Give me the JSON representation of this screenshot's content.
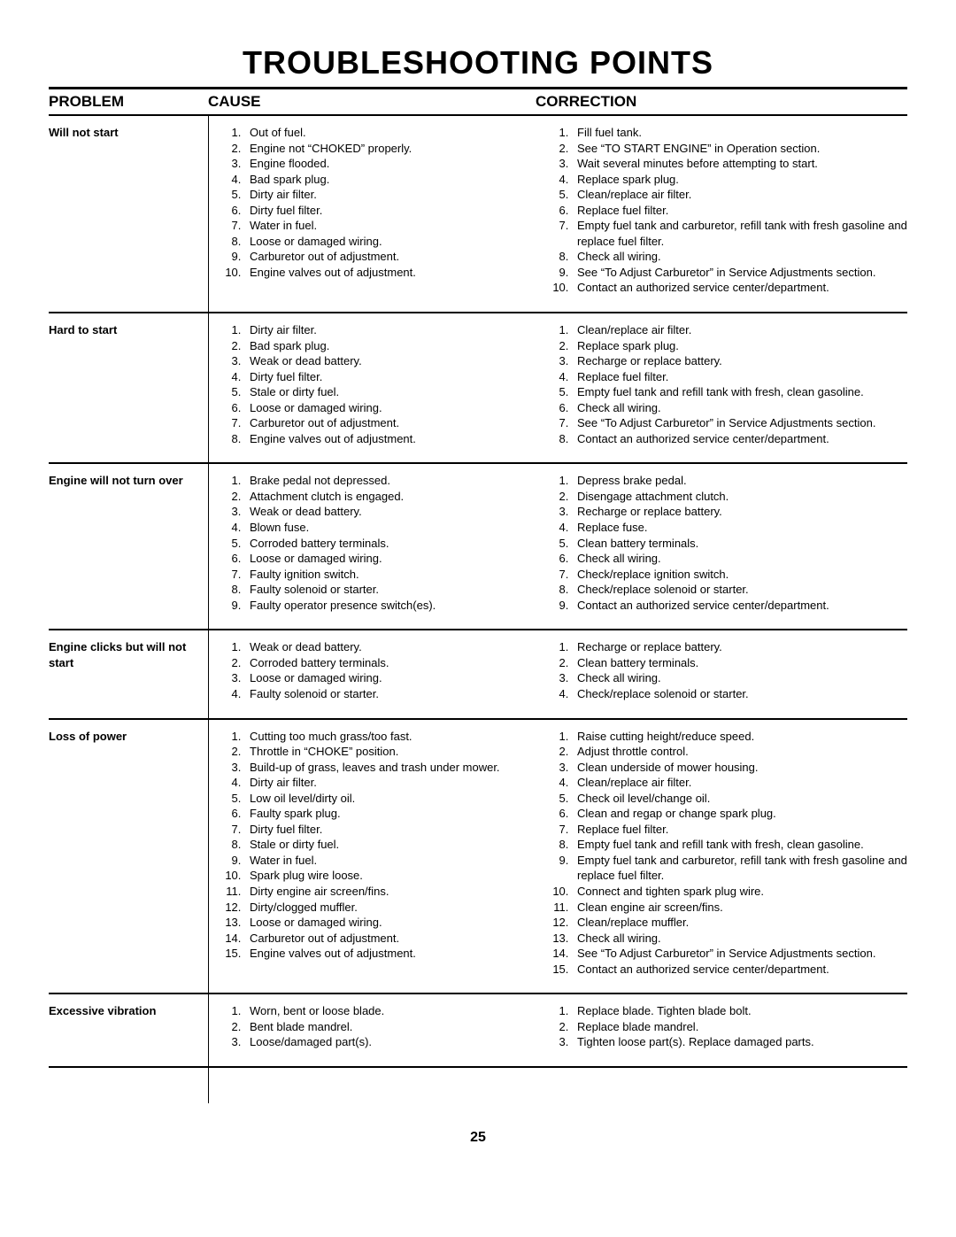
{
  "title": "TROUBLESHOOTING POINTS",
  "headers": {
    "problem": "PROBLEM",
    "cause": "CAUSE",
    "correction": "CORRECTION"
  },
  "page_number": "25",
  "sections": [
    {
      "problem": "Will not start",
      "causes": [
        "Out of fuel.",
        "Engine not “CHOKED” properly.",
        "Engine flooded.",
        "Bad spark plug.",
        "Dirty air filter.",
        "Dirty fuel filter.",
        "Water in fuel.",
        "Loose or damaged wiring.",
        "Carburetor out of adjustment.",
        "Engine valves out of adjustment."
      ],
      "corrections": [
        "Fill fuel tank.",
        "See “TO START ENGINE” in Operation section.",
        "Wait several minutes before attempting to start.",
        "Replace spark plug.",
        "Clean/replace air filter.",
        "Replace fuel filter.",
        "Empty fuel tank and carburetor, refill tank with fresh gasoline and replace fuel filter.",
        "Check all wiring.",
        "See “To Adjust Carburetor” in Service Adjustments section.",
        "Contact an authorized service center/department."
      ]
    },
    {
      "problem": "Hard to start",
      "causes": [
        "Dirty air filter.",
        "Bad spark plug.",
        "Weak or dead battery.",
        "Dirty fuel filter.",
        "Stale or dirty fuel.",
        "Loose or damaged wiring.",
        "Carburetor out of adjustment.",
        "Engine valves out of adjustment."
      ],
      "corrections": [
        "Clean/replace air filter.",
        "Replace spark plug.",
        "Recharge or replace battery.",
        "Replace fuel filter.",
        "Empty fuel tank and refill tank with fresh, clean gasoline.",
        "Check all wiring.",
        "See “To Adjust Carburetor” in Service Adjustments section.",
        "Contact an authorized service center/department."
      ]
    },
    {
      "problem": "Engine will not turn over",
      "causes": [
        "Brake pedal not depressed.",
        "Attachment clutch is engaged.",
        "Weak or dead battery.",
        "Blown fuse.",
        "Corroded battery terminals.",
        "Loose or damaged wiring.",
        "Faulty ignition switch.",
        "Faulty solenoid or starter.",
        "Faulty operator presence switch(es)."
      ],
      "corrections": [
        "Depress brake pedal.",
        "Disengage attachment clutch.",
        "Recharge or replace battery.",
        "Replace fuse.",
        "Clean battery terminals.",
        "Check all wiring.",
        "Check/replace ignition switch.",
        "Check/replace solenoid or starter.",
        "Contact an authorized service center/department."
      ]
    },
    {
      "problem": "Engine clicks but will not start",
      "causes": [
        "Weak or dead battery.",
        "Corroded battery terminals.",
        "Loose or damaged wiring.",
        "Faulty solenoid or starter."
      ],
      "corrections": [
        "Recharge or replace battery.",
        "Clean battery terminals.",
        "Check all wiring.",
        "Check/replace solenoid or starter."
      ]
    },
    {
      "problem": "Loss of power",
      "causes": [
        "Cutting too much grass/too fast.",
        "Throttle in “CHOKE” position.",
        "Build-up of grass, leaves and trash under mower.",
        "Dirty air filter.",
        "Low oil level/dirty oil.",
        "Faulty spark plug.",
        "Dirty fuel filter.",
        "Stale or dirty fuel.",
        "Water in fuel.",
        "Spark plug wire loose.",
        "Dirty engine air screen/fins.",
        "Dirty/clogged muffler.",
        "Loose or damaged wiring.",
        "Carburetor out of adjustment.",
        "Engine valves out of adjustment."
      ],
      "corrections": [
        "Raise cutting height/reduce speed.",
        "Adjust throttle control.",
        "Clean underside of mower housing.",
        "Clean/replace air filter.",
        "Check oil level/change oil.",
        "Clean and regap or change spark plug.",
        "Replace fuel filter.",
        "Empty fuel tank and refill tank with fresh, clean gasoline.",
        "Empty fuel tank and carburetor, refill tank with fresh gasoline and replace fuel filter.",
        "Connect and tighten spark plug wire.",
        "Clean engine air screen/fins.",
        "Clean/replace muffler.",
        "Check all wiring.",
        "See “To Adjust Carburetor” in Service Adjustments section.",
        "Contact an authorized service center/department."
      ]
    },
    {
      "problem": "Excessive vibration",
      "causes": [
        "Worn, bent or loose blade.",
        "Bent blade mandrel.",
        "Loose/damaged part(s)."
      ],
      "corrections": [
        "Replace blade.  Tighten blade bolt.",
        "Replace blade mandrel.",
        "Tighten loose part(s).  Replace damaged parts."
      ]
    }
  ]
}
